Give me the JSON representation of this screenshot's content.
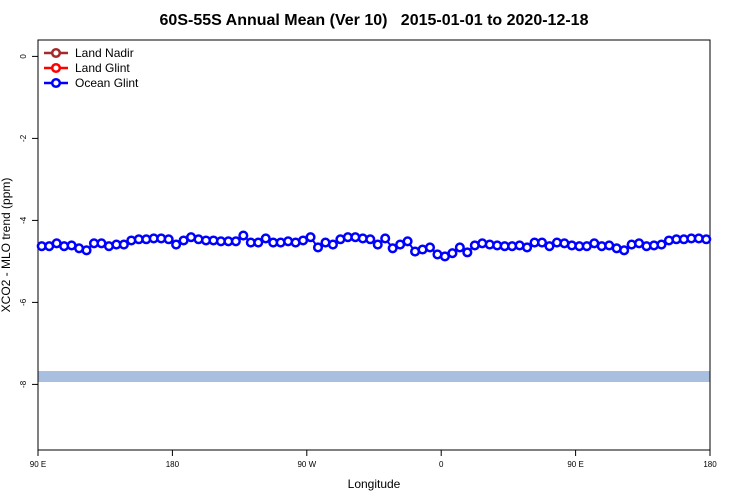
{
  "chart_data": {
    "type": "line",
    "title": "60S-55S Annual Mean (Ver 10)   2015-01-01 to 2020-12-18",
    "x_label": "Longitude",
    "y_label": "XCO2 - MLO trend (ppm)",
    "xlim": [
      90,
      540
    ],
    "xticks": [
      {
        "value": 90,
        "label": "90 E"
      },
      180,
      {
        "value": 270,
        "label": "90 W"
      },
      {
        "value": 360,
        "label": "0"
      },
      {
        "value": 450,
        "label": "90 E"
      },
      {
        "value": 540,
        "label": "180"
      }
    ],
    "ylim": [
      -9.6,
      0.4
    ],
    "yticks": [
      0,
      -2,
      -4,
      -6,
      -8
    ],
    "legend": "top-left",
    "x": [
      92.5,
      97.5,
      102.5,
      107.5,
      112.5,
      117.5,
      122.5,
      127.5,
      132.5,
      137.5,
      142.5,
      147.5,
      152.5,
      157.5,
      162.5,
      167.5,
      172.5,
      177.5,
      182.5,
      187.5,
      192.5,
      197.5,
      202.5,
      207.5,
      212.5,
      217.5,
      222.5,
      227.5,
      232.5,
      237.5,
      242.5,
      247.5,
      252.5,
      257.5,
      262.5,
      267.5,
      272.5,
      277.5,
      282.5,
      287.5,
      292.5,
      297.5,
      302.5,
      307.5,
      312.5,
      317.5,
      322.5,
      327.5,
      332.5,
      337.5,
      342.5,
      347.5,
      352.5,
      357.5,
      362.5,
      367.5,
      372.5,
      377.5,
      382.5,
      387.5,
      392.5,
      397.5,
      402.5,
      407.5,
      412.5,
      417.5,
      422.5,
      427.5,
      432.5,
      437.5,
      442.5,
      447.5,
      452.5,
      457.5,
      462.5,
      467.5,
      472.5,
      477.5,
      482.5,
      487.5,
      492.5,
      497.5,
      502.5,
      507.5,
      512.5,
      517.5,
      522.5,
      527.5,
      532.5,
      537.5
    ],
    "series": [
      {
        "name": "Land Nadir",
        "color": "#a52a2a",
        "values": [
          null,
          null,
          null,
          null,
          null,
          null,
          null,
          null,
          null,
          null,
          null,
          null,
          null,
          null,
          null,
          null,
          null,
          null,
          null,
          null,
          null,
          null,
          null,
          null,
          null,
          null,
          null,
          null,
          null,
          null,
          null,
          null,
          null,
          null,
          null,
          null,
          null,
          null,
          null,
          null,
          null,
          null,
          null,
          null,
          null,
          null,
          null,
          null,
          null,
          null,
          null,
          null,
          null,
          null,
          null,
          null,
          null,
          null,
          null,
          null,
          null,
          null,
          null,
          null,
          null,
          null,
          null,
          null,
          null,
          null,
          null,
          null,
          null,
          null,
          null,
          null,
          null,
          null,
          null,
          null,
          null,
          null,
          null,
          null,
          null,
          null,
          null,
          null,
          null,
          null
        ]
      },
      {
        "name": "Land Glint",
        "color": "#ff0000",
        "values": [
          null,
          null,
          null,
          null,
          null,
          null,
          null,
          null,
          null,
          null,
          null,
          null,
          null,
          null,
          null,
          null,
          null,
          null,
          null,
          null,
          null,
          null,
          null,
          null,
          null,
          null,
          null,
          null,
          null,
          null,
          null,
          null,
          null,
          null,
          null,
          null,
          null,
          null,
          null,
          null,
          null,
          null,
          null,
          null,
          null,
          null,
          null,
          null,
          null,
          null,
          null,
          null,
          null,
          null,
          null,
          null,
          null,
          null,
          null,
          null,
          null,
          null,
          null,
          null,
          null,
          null,
          null,
          null,
          null,
          null,
          null,
          null,
          null,
          null,
          null,
          null,
          null,
          null,
          null,
          null,
          null,
          null,
          null,
          null,
          null,
          null,
          null,
          null,
          null,
          null
        ]
      },
      {
        "name": "Ocean Glint",
        "color": "#0000ff",
        "values": [
          -4.63,
          -4.63,
          -4.56,
          -4.63,
          -4.61,
          -4.68,
          -4.73,
          -4.56,
          -4.56,
          -4.63,
          -4.59,
          -4.59,
          -4.49,
          -4.46,
          -4.46,
          -4.44,
          -4.44,
          -4.46,
          -4.59,
          -4.49,
          -4.41,
          -4.46,
          -4.49,
          -4.49,
          -4.51,
          -4.51,
          -4.51,
          -4.37,
          -4.54,
          -4.54,
          -4.44,
          -4.54,
          -4.54,
          -4.51,
          -4.54,
          -4.49,
          -4.41,
          -4.66,
          -4.54,
          -4.59,
          -4.46,
          -4.41,
          -4.41,
          -4.44,
          -4.46,
          -4.59,
          -4.44,
          -4.68,
          -4.59,
          -4.51,
          -4.76,
          -4.71,
          -4.66,
          -4.83,
          -4.88,
          -4.8,
          -4.66,
          -4.78,
          -4.61,
          -4.56,
          -4.59,
          -4.61,
          -4.63,
          -4.63,
          -4.61,
          -4.66,
          -4.54,
          -4.54,
          -4.63,
          -4.54,
          -4.56,
          -4.61,
          -4.63,
          -4.63,
          -4.56,
          -4.63,
          -4.61,
          -4.68,
          -4.73,
          -4.59,
          -4.56,
          -4.63,
          -4.61,
          -4.59,
          -4.49,
          -4.46,
          -4.46,
          -4.44,
          -4.44,
          -4.46
        ]
      }
    ]
  }
}
